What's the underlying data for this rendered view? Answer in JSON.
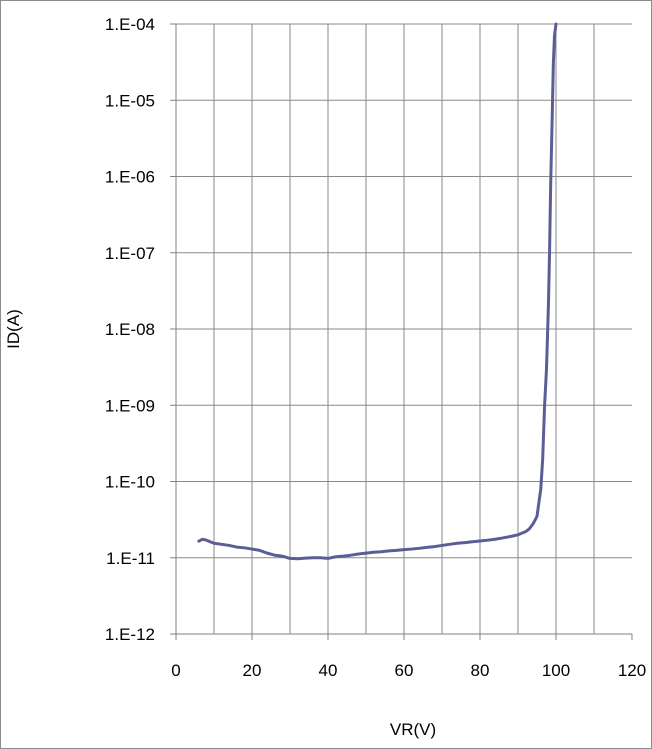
{
  "chart_data": {
    "type": "line",
    "xlabel": "VR(V)",
    "ylabel": "ID(A)",
    "xlim": [
      0,
      120
    ],
    "ylim": [
      1e-12,
      0.0001
    ],
    "y_scale": "log",
    "grid": true,
    "x_ticks": [
      0,
      20,
      40,
      60,
      80,
      100,
      120
    ],
    "y_ticks": [
      1e-12,
      1e-11,
      1e-10,
      1e-09,
      1e-08,
      1e-07,
      1e-06,
      1e-05,
      0.0001
    ],
    "x_tick_labels": [
      "0",
      "20",
      "40",
      "60",
      "80",
      "100",
      "120"
    ],
    "y_tick_labels": [
      "1.E-12",
      "1.E-11",
      "1.E-10",
      "1.E-09",
      "1.E-08",
      "1.E-07",
      "1.E-06",
      "1.E-05",
      "1.E-04"
    ],
    "line_color": "#5b5e96",
    "series": [
      {
        "x": [
          6,
          7,
          8,
          9,
          10,
          12,
          14,
          16,
          18,
          20,
          22,
          24,
          26,
          28,
          30,
          32,
          34,
          36,
          38,
          40,
          42,
          44,
          46,
          48,
          50,
          52,
          54,
          56,
          58,
          60,
          62,
          64,
          66,
          68,
          70,
          72,
          74,
          76,
          78,
          80,
          82,
          84,
          86,
          88,
          90,
          92,
          93,
          94,
          95,
          96,
          96.5,
          97,
          97.5,
          98,
          98.3,
          98.6,
          99,
          99.3,
          99.6,
          100
        ],
        "y": [
          1.65e-11,
          1.75e-11,
          1.7e-11,
          1.62e-11,
          1.55e-11,
          1.5e-11,
          1.45e-11,
          1.38e-11,
          1.35e-11,
          1.3e-11,
          1.25e-11,
          1.15e-11,
          1.08e-11,
          1.05e-11,
          9.8e-12,
          9.7e-12,
          9.9e-12,
          1e-11,
          1e-11,
          9.8e-12,
          1.03e-11,
          1.05e-11,
          1.08e-11,
          1.12e-11,
          1.15e-11,
          1.18e-11,
          1.2e-11,
          1.23e-11,
          1.25e-11,
          1.28e-11,
          1.3e-11,
          1.33e-11,
          1.37e-11,
          1.4e-11,
          1.45e-11,
          1.5e-11,
          1.55e-11,
          1.58e-11,
          1.62e-11,
          1.66e-11,
          1.7e-11,
          1.75e-11,
          1.82e-11,
          1.9e-11,
          2e-11,
          2.2e-11,
          2.4e-11,
          2.8e-11,
          3.5e-11,
          8e-11,
          2e-10,
          1e-09,
          3e-09,
          2e-08,
          1e-07,
          8e-07,
          6e-06,
          3e-05,
          7e-05,
          0.0001
        ]
      }
    ]
  }
}
